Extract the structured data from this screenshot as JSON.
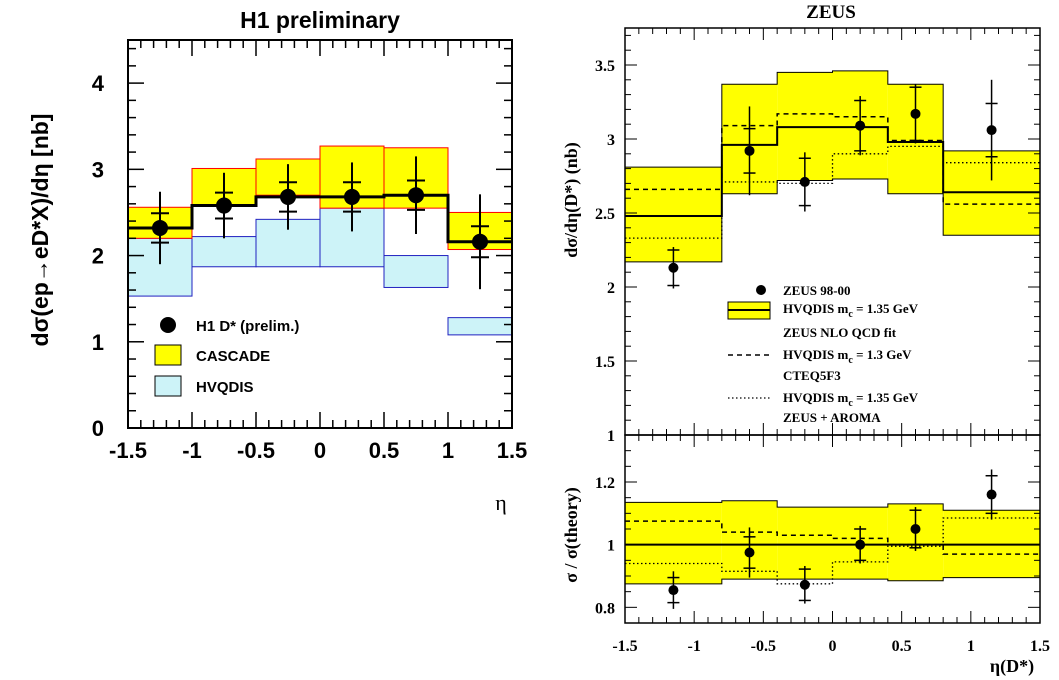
{
  "chart_data": [
    {
      "type": "line",
      "panel": "left",
      "title": "H1 preliminary",
      "ylabel": "dσ(ep→eD*X)/dη [nb]",
      "xlabel": "η",
      "xlim": [
        -1.5,
        1.5
      ],
      "ylim": [
        0,
        4.5
      ],
      "xticks": [
        "-1.5",
        "-1",
        "-0.5",
        "0",
        "0.5",
        "1",
        "1.5"
      ],
      "yticks": [
        "0",
        "1",
        "2",
        "3",
        "4"
      ],
      "bin_edges": [
        -1.5,
        -1,
        -0.5,
        0,
        0.5,
        1,
        1.5
      ],
      "series": [
        {
          "name": "H1 D* (prelim.)",
          "x": [
            -1.25,
            -0.75,
            -0.25,
            0.25,
            0.75,
            1.25
          ],
          "y": [
            2.32,
            2.58,
            2.68,
            2.68,
            2.7,
            2.16
          ],
          "stat_err": [
            0.17,
            0.15,
            0.17,
            0.17,
            0.17,
            0.18
          ],
          "tot_err": [
            0.42,
            0.38,
            0.38,
            0.4,
            0.45,
            0.55
          ],
          "central_line": [
            2.32,
            2.58,
            2.68,
            2.68,
            2.7,
            2.16
          ]
        },
        {
          "name": "CASCADE",
          "low": [
            2.2,
            2.58,
            2.7,
            2.55,
            2.55,
            2.07
          ],
          "high": [
            2.56,
            3.01,
            3.12,
            3.27,
            3.25,
            2.5
          ],
          "color": "#ffff00",
          "edge": "#ff0000"
        },
        {
          "name": "HVQDIS",
          "low": [
            1.53,
            1.87,
            1.87,
            1.87,
            1.63,
            1.08
          ],
          "high": [
            2.2,
            2.22,
            2.42,
            2.55,
            2.0,
            1.28
          ],
          "color": "#cdf3f8",
          "edge": "#2020c0"
        }
      ],
      "legend": "bottom-left"
    },
    {
      "type": "line",
      "panel": "right-top",
      "title": "ZEUS",
      "ylabel": "dσ/dη(D*) (nb)",
      "xlim": [
        -1.5,
        1.5
      ],
      "ylim": [
        1,
        3.75
      ],
      "yticks": [
        "1",
        "1.5",
        "2",
        "2.5",
        "3",
        "3.5"
      ],
      "bin_edges": [
        -1.5,
        -0.8,
        -0.4,
        0,
        0.4,
        0.8,
        1.5
      ],
      "series": [
        {
          "name": "ZEUS 98-00",
          "x": [
            -1.15,
            -0.6,
            -0.2,
            0.2,
            0.6,
            1.15
          ],
          "y": [
            2.13,
            2.92,
            2.71,
            3.09,
            3.17,
            3.06
          ],
          "stat_err": [
            0.12,
            0.15,
            0.16,
            0.17,
            0.18,
            0.18
          ],
          "tot_err": [
            0.14,
            0.3,
            0.2,
            0.2,
            0.2,
            0.34
          ]
        },
        {
          "name": "HVQDIS m_c = 1.35 GeV",
          "central": [
            2.48,
            2.96,
            3.08,
            3.08,
            2.98,
            2.64
          ],
          "low": [
            2.17,
            2.63,
            2.72,
            2.73,
            2.63,
            2.35
          ],
          "high": [
            2.81,
            3.37,
            3.45,
            3.46,
            3.37,
            2.92
          ],
          "color": "#ffff00"
        },
        {
          "name": "HVQDIS m_c = 1.3 GeV",
          "values": [
            2.66,
            3.09,
            3.17,
            3.15,
            2.99,
            2.56
          ]
        },
        {
          "name": "HVQDIS m_c = 1.35 GeV",
          "values": [
            2.33,
            2.71,
            2.7,
            2.9,
            2.95,
            2.84
          ]
        }
      ],
      "legend": "bottom-center"
    },
    {
      "type": "line",
      "panel": "right-bottom",
      "ylabel": "σ / σ(theory)",
      "xlabel": "η(D*)",
      "xlim": [
        -1.5,
        1.5
      ],
      "ylim": [
        0.75,
        1.35
      ],
      "xticks": [
        "-1.5",
        "-1",
        "-0.5",
        "0",
        "0.5",
        "1",
        "1.5"
      ],
      "yticks": [
        "0.8",
        "1",
        "1.2"
      ],
      "bin_edges": [
        -1.5,
        -0.8,
        -0.4,
        0,
        0.4,
        0.8,
        1.5
      ],
      "series": [
        {
          "name": "ratio",
          "x": [
            -1.15,
            -0.6,
            -0.2,
            0.2,
            0.6,
            1.15
          ],
          "y": [
            0.855,
            0.975,
            0.872,
            1.0,
            1.05,
            1.16
          ],
          "stat_err": [
            0.04,
            0.05,
            0.05,
            0.05,
            0.06,
            0.06
          ],
          "tot_err": [
            0.06,
            0.08,
            0.06,
            0.06,
            0.07,
            0.08
          ]
        },
        {
          "name": "band",
          "low": [
            0.875,
            0.89,
            0.89,
            0.89,
            0.885,
            0.895
          ],
          "high": [
            1.135,
            1.14,
            1.12,
            1.12,
            1.13,
            1.11
          ],
          "central": [
            1.0,
            1.0,
            1.0,
            1.0,
            1.0,
            1.0
          ]
        },
        {
          "name": "dashed",
          "values": [
            1.075,
            1.04,
            1.03,
            1.02,
            1.0,
            0.97
          ]
        },
        {
          "name": "dotted",
          "values": [
            0.94,
            0.915,
            0.875,
            0.945,
            0.995,
            1.085
          ]
        }
      ]
    }
  ],
  "legend_left": [
    {
      "label": "H1 D* (prelim.)",
      "symbol": "dot"
    },
    {
      "label": "CASCADE",
      "symbol": "yellow-box"
    },
    {
      "label": "HVQDIS",
      "symbol": "cyan-box"
    }
  ],
  "legend_right": [
    {
      "label": "ZEUS 98-00",
      "symbol": "dot"
    },
    {
      "label": "HVQDIS m",
      "sub": "c",
      "rest": " = 1.35 GeV",
      "symbol": "band"
    },
    {
      "label": "ZEUS NLO QCD fit",
      "symbol": "none"
    },
    {
      "label": "HVQDIS m",
      "sub": "c",
      "rest": " = 1.3 GeV",
      "symbol": "dashed"
    },
    {
      "label": "CTEQ5F3",
      "symbol": "none"
    },
    {
      "label": "HVQDIS m",
      "sub": "c",
      "rest": " = 1.35 GeV",
      "symbol": "dotted"
    },
    {
      "label": "ZEUS + AROMA",
      "symbol": "none"
    }
  ]
}
